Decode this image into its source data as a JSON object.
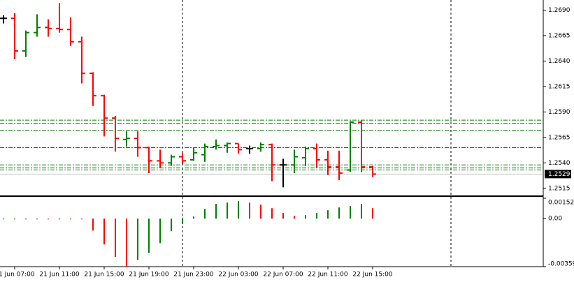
{
  "chart_data": [
    {
      "type": "ohlc",
      "categories": [
        null,
        "21 Jun 07:00",
        null,
        null,
        null,
        "21 Jun 11:00",
        null,
        null,
        null,
        "21 Jun 15:00",
        null,
        null,
        null,
        "21 Jun 19:00",
        null,
        null,
        null,
        "21 Jun 23:00",
        null,
        null,
        null,
        "22 Jun 03:00",
        null,
        null,
        null,
        "22 Jun 07:00",
        null,
        null,
        null,
        "22 Jun 11:00",
        null,
        null,
        null,
        "22 Jun 15:00"
      ],
      "open": [
        1.2682,
        1.2682,
        1.265,
        1.2668,
        1.2673,
        1.2672,
        1.2671,
        1.2659,
        1.2628,
        1.2606,
        1.2584,
        1.2563,
        1.2564,
        1.2555,
        1.2542,
        1.254,
        1.2546,
        1.2543,
        1.2548,
        1.2556,
        1.2557,
        1.2559,
        1.2554,
        1.2554,
        1.2558,
        1.2538,
        1.2538,
        1.2545,
        1.2554,
        1.2543,
        1.2536,
        1.2533,
        1.258,
        1.2536
      ],
      "high": [
        1.2685,
        1.2687,
        1.267,
        1.2686,
        1.2681,
        1.2697,
        1.2683,
        1.2664,
        1.2629,
        1.2607,
        1.2586,
        1.2571,
        1.2571,
        1.2556,
        1.2553,
        1.2548,
        1.255,
        1.2555,
        1.2559,
        1.2563,
        1.256,
        1.2559,
        1.2557,
        1.256,
        1.2559,
        1.2544,
        1.2553,
        1.2556,
        1.2559,
        1.2552,
        1.2552,
        1.2581,
        1.2582,
        1.2537
      ],
      "low": [
        1.2677,
        1.2642,
        1.2644,
        1.2664,
        1.2664,
        1.2668,
        1.2655,
        1.2618,
        1.2596,
        1.2566,
        1.2551,
        1.2556,
        1.2546,
        1.253,
        1.2535,
        1.2537,
        1.2539,
        1.2542,
        1.2541,
        1.2553,
        1.255,
        1.2549,
        1.2549,
        1.2551,
        1.2522,
        1.2516,
        1.253,
        1.2537,
        1.2535,
        1.2528,
        1.2523,
        1.2531,
        1.2531,
        1.2526
      ],
      "close": [
        1.2682,
        1.265,
        1.2668,
        1.2673,
        1.2672,
        1.2671,
        1.2659,
        1.2628,
        1.2606,
        1.2584,
        1.2564,
        1.2564,
        1.2555,
        1.2542,
        1.254,
        1.2546,
        1.2542,
        1.255,
        1.2556,
        1.2557,
        1.2559,
        1.2553,
        1.2554,
        1.2558,
        1.2538,
        1.2538,
        1.2546,
        1.2554,
        1.2543,
        1.2536,
        1.253,
        1.258,
        1.2536,
        1.2529
      ],
      "up_color": "#008000",
      "down_color": "#ff0000",
      "doji_color": "#000000",
      "levels": [
        1.2582,
        1.2579,
        1.2572,
        1.2555,
        1.2538,
        1.2535,
        1.2533
      ],
      "level_color": "#008000",
      "last_price": 1.2529,
      "ylim": [
        1.2508,
        1.27
      ],
      "yticks": [
        {
          "value": 1.269,
          "label": "1.2690"
        },
        {
          "value": 1.2665,
          "label": "1.2665"
        },
        {
          "value": 1.264,
          "label": "1.2640"
        },
        {
          "value": 1.2615,
          "label": "1.2615"
        },
        {
          "value": 1.259,
          "label": "1.2590"
        },
        {
          "value": 1.2565,
          "label": "1.2565"
        },
        {
          "value": 1.254,
          "label": "1.2540"
        },
        {
          "value": 1.2515,
          "label": "1.2515"
        }
      ]
    },
    {
      "type": "histogram",
      "values": [
        2e-05,
        2e-05,
        1e-05,
        2e-05,
        1e-05,
        0,
        2e-05,
        -2e-05,
        -0.00089,
        -0.00193,
        -0.00287,
        -0.00359,
        -0.00308,
        -0.00256,
        -0.00183,
        -0.00094,
        -0.00037,
        0.00016,
        0.00073,
        0.0011,
        0.0012,
        0.00131,
        0.0012,
        0.00104,
        0.00078,
        0.00042,
        0.00021,
        0.00026,
        0.00042,
        0.00063,
        0.00084,
        0.00094,
        0.0011,
        0.00078
      ],
      "up_color": "#008000",
      "down_color": "#ff0000",
      "ylim": [
        -0.00359,
        0.001527
      ],
      "yticks": [
        0.001527,
        {
          "value": 0,
          "label": "0.00"
        },
        -0.00359
      ]
    }
  ]
}
